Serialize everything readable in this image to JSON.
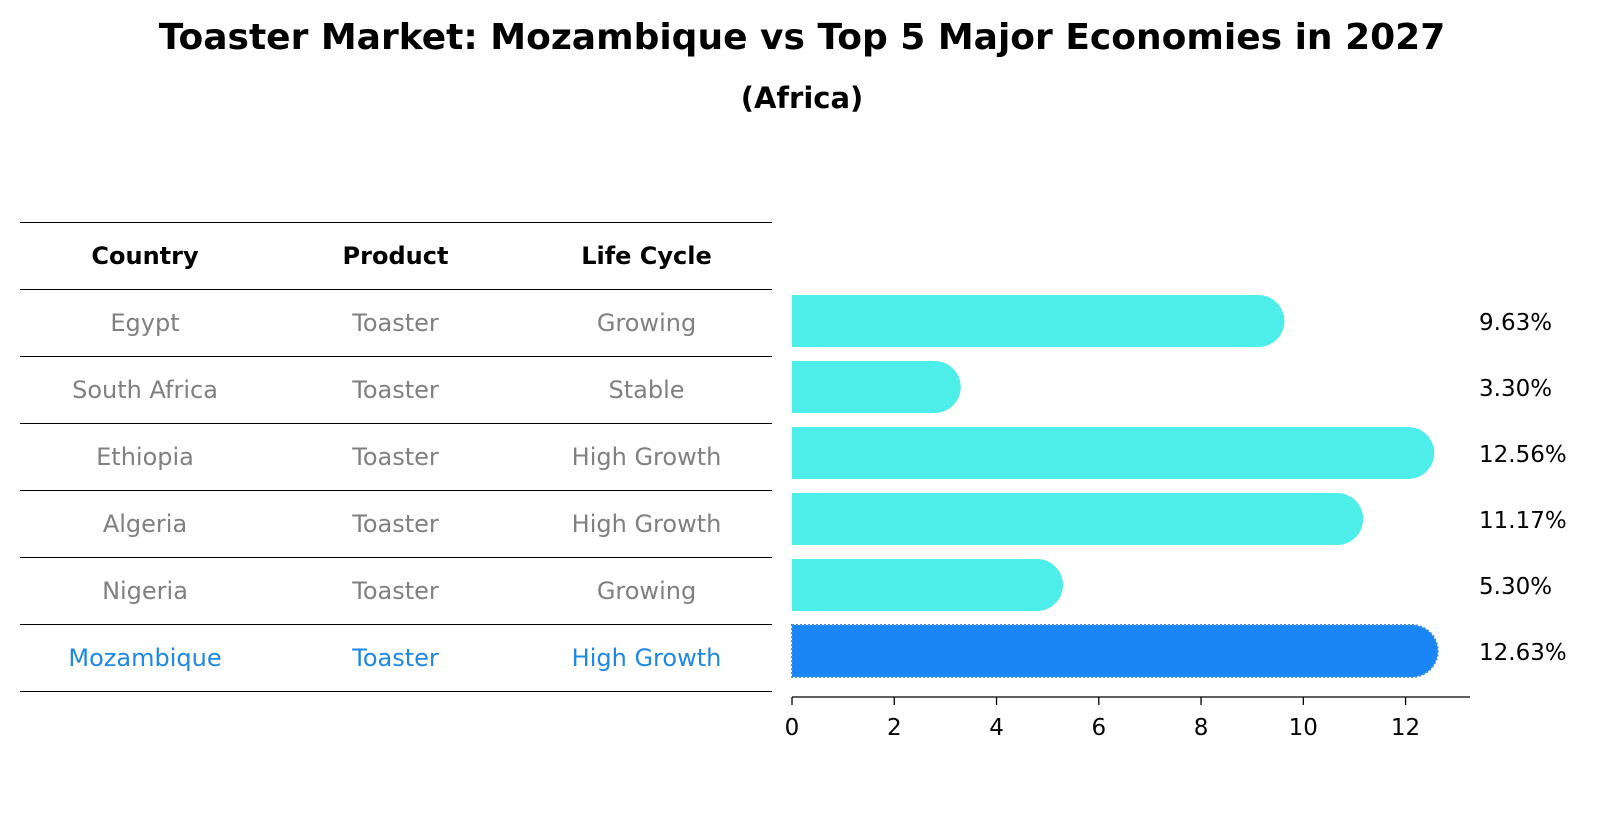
{
  "title": "Toaster Market: Mozambique vs Top 5 Major Economies in 2027",
  "subtitle": "(Africa)",
  "table": {
    "headers": [
      "Country",
      "Product",
      "Life Cycle"
    ],
    "rows": [
      {
        "country": "Egypt",
        "product": "Toaster",
        "life_cycle": "Growing"
      },
      {
        "country": "South Africa",
        "product": "Toaster",
        "life_cycle": "Stable"
      },
      {
        "country": "Ethiopia",
        "product": "Toaster",
        "life_cycle": "High Growth"
      },
      {
        "country": "Algeria",
        "product": "Toaster",
        "life_cycle": "High Growth"
      },
      {
        "country": "Nigeria",
        "product": "Toaster",
        "life_cycle": "Growing"
      },
      {
        "country": "Mozambique",
        "product": "Toaster",
        "life_cycle": "High Growth"
      }
    ]
  },
  "chart_data": {
    "type": "bar",
    "orientation": "horizontal",
    "categories": [
      "Egypt",
      "South Africa",
      "Ethiopia",
      "Algeria",
      "Nigeria",
      "Mozambique"
    ],
    "values": [
      9.63,
      3.3,
      12.56,
      11.17,
      5.3,
      12.63
    ],
    "data_labels": [
      "9.63%",
      "3.30%",
      "12.56%",
      "11.17%",
      "5.30%",
      "12.63%"
    ],
    "highlight": "Mozambique",
    "xlim": [
      0,
      13.26
    ],
    "xticks": [
      0,
      2,
      4,
      6,
      8,
      10,
      12
    ],
    "xtick_labels": [
      "0",
      "2",
      "4",
      "6",
      "8",
      "10",
      "12"
    ],
    "title": "Toaster Market: Mozambique vs Top 5 Major Economies in 2027",
    "subtitle": "(Africa)",
    "xlabel": "",
    "ylabel": "",
    "grid": false,
    "colors": {
      "bar": "#4DEEEA",
      "highlight": "#1A85F5",
      "highlight_text": "#1E88E5",
      "muted_text": "#808080"
    }
  }
}
